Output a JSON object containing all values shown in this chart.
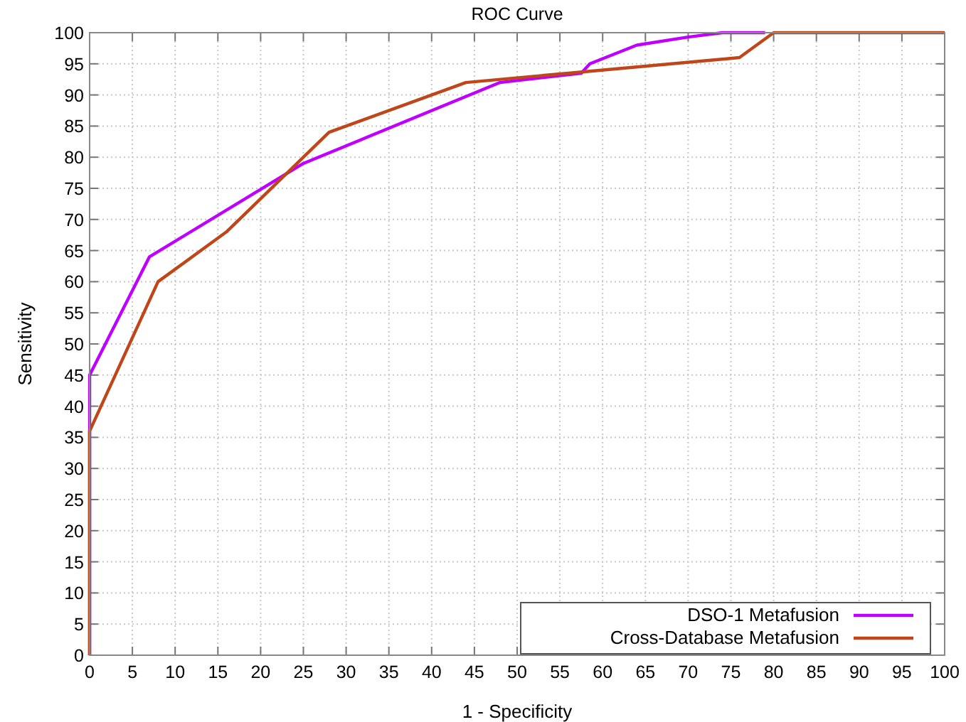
{
  "chart_data": {
    "type": "line",
    "title": "ROC Curve",
    "xlabel": "1 - Specificity",
    "ylabel": "Sensitivity",
    "xlim": [
      0,
      100
    ],
    "ylim": [
      0,
      100
    ],
    "xticks": [
      0,
      5,
      10,
      15,
      20,
      25,
      30,
      35,
      40,
      45,
      50,
      55,
      60,
      65,
      70,
      75,
      80,
      85,
      90,
      95,
      100
    ],
    "yticks": [
      0,
      5,
      10,
      15,
      20,
      25,
      30,
      35,
      40,
      45,
      50,
      55,
      60,
      65,
      70,
      75,
      80,
      85,
      90,
      95,
      100
    ],
    "grid": true,
    "legend": "bottom right",
    "marker": "none",
    "line_style": "solid",
    "series": [
      {
        "name": "DSO-1 Metafusion",
        "color": "#c000ff",
        "x": [
          0,
          0,
          7,
          25,
          48,
          57.5,
          58.5,
          64,
          70,
          74,
          79
        ],
        "values": [
          0,
          45,
          64,
          79,
          92,
          93.5,
          95,
          98,
          99.3,
          100,
          100
        ]
      },
      {
        "name": "Cross-Database Metafusion",
        "color": "#c0461a",
        "x": [
          0,
          0,
          8,
          16,
          28,
          44,
          56,
          76,
          80,
          100
        ],
        "values": [
          0,
          36,
          60,
          68,
          84,
          92,
          93.5,
          96,
          100,
          100
        ]
      }
    ]
  }
}
